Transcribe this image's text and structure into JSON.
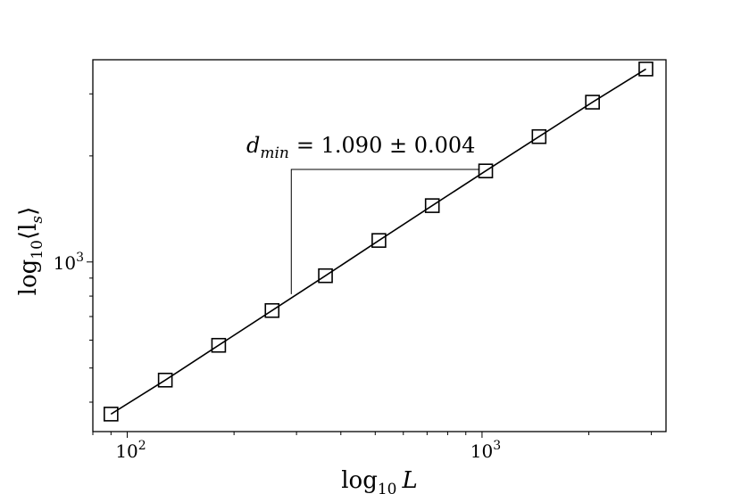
{
  "chart_data": {
    "type": "scatter",
    "x_scale": "log",
    "y_scale": "log",
    "xlabel": {
      "base": "log",
      "sub": "10",
      "var": "L"
    },
    "ylabel": {
      "base": "log",
      "sub": "10",
      "var": "⟨l",
      "var_sub": "s",
      "close": "⟩"
    },
    "x_tick_labels": [
      {
        "value": 100,
        "base": "10",
        "exp": "2"
      },
      {
        "value": 1000,
        "base": "10",
        "exp": "3"
      }
    ],
    "y_tick_labels": [
      {
        "value": 1000,
        "base": "10",
        "exp": "3"
      }
    ],
    "xlim": [
      80,
      3300
    ],
    "ylim": [
      330,
      3750
    ],
    "annotation": {
      "sym": "d",
      "sub": "min",
      "text": "= 1.090 ± 0.004"
    },
    "series": [
      {
        "marker": "square-open",
        "line": "solid",
        "color": "#000000",
        "x": [
          90,
          128,
          181,
          256,
          362,
          512,
          724,
          1024,
          1448,
          2048,
          2896
        ],
        "y": [
          370,
          462,
          580,
          728,
          914,
          1151,
          1445,
          1813,
          2269,
          2842,
          3530
        ]
      }
    ],
    "grid": false,
    "legend": "none"
  }
}
